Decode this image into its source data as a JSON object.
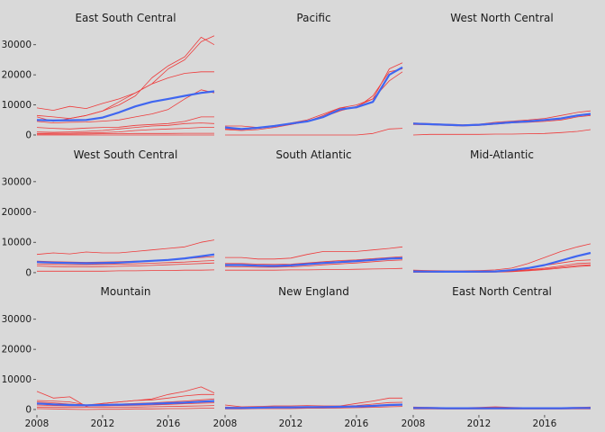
{
  "chart_data": {
    "type": "line",
    "layout": "3x3 facet grid",
    "x_ticks": [
      2008,
      2012,
      2016
    ],
    "xlim": [
      2008,
      2018.8
    ],
    "y_ticks": [
      0,
      10000,
      20000,
      30000
    ],
    "y_tick_labels": [
      "0",
      "10000",
      "20000",
      "30000"
    ],
    "ylim": [
      -1500,
      35000
    ],
    "grid": false,
    "legend": "none",
    "x": [
      2008,
      2009,
      2010,
      2011,
      2012,
      2013,
      2014,
      2015,
      2016,
      2017,
      2018,
      2018.8
    ],
    "colors": {
      "thin": "#ee3b3b",
      "mean": "#3f66f0",
      "background": "#d9d9d9"
    },
    "panels": [
      {
        "title": "East South Central",
        "mean": [
          5000,
          4800,
          4900,
          5000,
          5800,
          7500,
          9500,
          11000,
          12000,
          13000,
          14000,
          14500
        ],
        "lines": [
          [
            9000,
            8200,
            9500,
            8800,
            10500,
            12000,
            14000,
            17000,
            22000,
            25000,
            31000,
            33000
          ],
          [
            6500,
            6000,
            5500,
            6500,
            8000,
            10000,
            13000,
            19000,
            23000,
            26000,
            32500,
            30000
          ],
          [
            6000,
            4500,
            5500,
            6500,
            8000,
            11000,
            14000,
            17000,
            19000,
            20500,
            21000,
            21000
          ],
          [
            4500,
            4000,
            4200,
            4300,
            4600,
            5000,
            6000,
            7000,
            8500,
            12000,
            15000,
            14000
          ],
          [
            2500,
            2200,
            2000,
            2300,
            2500,
            2600,
            3200,
            3500,
            3800,
            4500,
            6000,
            6000
          ],
          [
            1000,
            900,
            1000,
            1200,
            1500,
            2000,
            2500,
            3000,
            3200,
            3800,
            4000,
            3800
          ],
          [
            500,
            600,
            600,
            700,
            800,
            1000,
            1500,
            1800,
            2000,
            2200,
            2500,
            2500
          ],
          [
            300,
            300,
            300,
            350,
            400,
            450,
            500,
            500,
            500,
            550,
            550,
            550
          ],
          [
            0,
            0,
            0,
            0,
            0,
            0,
            0,
            0,
            0,
            0,
            0,
            0
          ]
        ]
      },
      {
        "title": "Pacific",
        "mean": [
          2500,
          2000,
          2400,
          3000,
          3800,
          4500,
          6000,
          8500,
          9200,
          11000,
          20000,
          22500
        ],
        "lines": [
          [
            3000,
            3000,
            2500,
            3000,
            3500,
            4500,
            6500,
            9000,
            10000,
            12000,
            22000,
            24000
          ],
          [
            2000,
            1800,
            2200,
            2800,
            4000,
            5000,
            7000,
            9000,
            9000,
            13000,
            21000,
            22000
          ],
          [
            1800,
            1500,
            1800,
            2500,
            3500,
            4500,
            6000,
            8000,
            9500,
            12000,
            18000,
            21000
          ],
          [
            0,
            0,
            0,
            0,
            0,
            0,
            0,
            0,
            0,
            500,
            2000,
            2200
          ]
        ]
      },
      {
        "title": "West North Central",
        "mean": [
          3800,
          3600,
          3400,
          3200,
          3400,
          3800,
          4200,
          4500,
          5000,
          5500,
          6500,
          7000
        ],
        "lines": [
          [
            4000,
            3800,
            3600,
            3400,
            3600,
            4200,
            4600,
            5000,
            5500,
            6500,
            7500,
            8000
          ],
          [
            3500,
            3400,
            3200,
            3000,
            3200,
            3600,
            4000,
            4200,
            4500,
            5000,
            6000,
            6500
          ],
          [
            0,
            200,
            200,
            200,
            200,
            300,
            300,
            400,
            500,
            800,
            1200,
            1800
          ]
        ]
      },
      {
        "title": "West South Central",
        "mean": [
          3500,
          3300,
          3200,
          3100,
          3200,
          3300,
          3600,
          3900,
          4200,
          4700,
          5400,
          6000
        ],
        "lines": [
          [
            6000,
            6500,
            6200,
            6800,
            6500,
            6500,
            7000,
            7500,
            8000,
            8500,
            10000,
            10800
          ],
          [
            3800,
            3600,
            3500,
            3400,
            3500,
            3600,
            3800,
            4000,
            4300,
            4600,
            5000,
            5300
          ],
          [
            2800,
            2700,
            2600,
            2600,
            2700,
            2800,
            2900,
            3100,
            3300,
            3500,
            3800,
            4000
          ],
          [
            2200,
            2000,
            1900,
            1900,
            2000,
            2100,
            2200,
            2400,
            2600,
            2800,
            3000,
            3200
          ],
          [
            500,
            500,
            500,
            500,
            500,
            600,
            600,
            700,
            700,
            800,
            800,
            900
          ]
        ]
      },
      {
        "title": "South Atlantic",
        "mean": [
          2500,
          2500,
          2300,
          2200,
          2400,
          2800,
          3200,
          3500,
          3800,
          4200,
          4600,
          4800
        ],
        "lines": [
          [
            5000,
            5000,
            4500,
            4500,
            4800,
            6000,
            7000,
            7000,
            7000,
            7500,
            8000,
            8500
          ],
          [
            3000,
            3000,
            2800,
            2700,
            2800,
            3200,
            3600,
            4000,
            4200,
            4600,
            5000,
            5300
          ],
          [
            2000,
            1900,
            1800,
            1800,
            1900,
            2200,
            2600,
            2900,
            3200,
            3600,
            4000,
            4200
          ],
          [
            800,
            800,
            800,
            800,
            900,
            900,
            1000,
            1000,
            1100,
            1200,
            1300,
            1400
          ]
        ]
      },
      {
        "title": "Mid-Atlantic",
        "mean": [
          400,
          350,
          300,
          300,
          350,
          400,
          800,
          1500,
          2500,
          4000,
          5500,
          6500
        ],
        "lines": [
          [
            800,
            700,
            600,
            600,
            700,
            900,
            1500,
            3000,
            5000,
            7000,
            8500,
            9500
          ],
          [
            500,
            400,
            350,
            350,
            400,
            500,
            900,
            1600,
            2400,
            3200,
            4000,
            4200
          ],
          [
            300,
            250,
            200,
            200,
            250,
            300,
            500,
            1000,
            1500,
            2200,
            3000,
            3200
          ],
          [
            200,
            200,
            150,
            150,
            200,
            250,
            400,
            800,
            1200,
            1800,
            2400,
            2600
          ],
          [
            100,
            100,
            100,
            100,
            100,
            150,
            300,
            600,
            1000,
            1500,
            2000,
            2300
          ]
        ]
      },
      {
        "title": "Mountain",
        "mean": [
          2000,
          1700,
          1500,
          1400,
          1500,
          1600,
          1700,
          1900,
          2100,
          2300,
          2600,
          2800
        ],
        "lines": [
          [
            6000,
            3800,
            4200,
            1000,
            2000,
            2500,
            3000,
            3500,
            5000,
            6000,
            7500,
            5500
          ],
          [
            3000,
            2800,
            2500,
            1500,
            2000,
            2500,
            3000,
            3200,
            3800,
            4500,
            5000,
            5000
          ],
          [
            2500,
            2200,
            1800,
            1500,
            1600,
            1800,
            2000,
            2200,
            2500,
            2800,
            3200,
            3500
          ],
          [
            1500,
            1300,
            1200,
            1200,
            1200,
            1300,
            1400,
            1500,
            1700,
            1900,
            2100,
            2200
          ],
          [
            800,
            800,
            700,
            700,
            700,
            800,
            800,
            900,
            1000,
            1100,
            1200,
            1300
          ],
          [
            300,
            200,
            100,
            0,
            100,
            100,
            200,
            200,
            300,
            300,
            400,
            400
          ]
        ]
      },
      {
        "title": "New England",
        "mean": [
          500,
          500,
          600,
          700,
          700,
          800,
          800,
          900,
          1000,
          1200,
          1500,
          1600
        ],
        "lines": [
          [
            1500,
            900,
            1000,
            1200,
            1200,
            1300,
            1200,
            1200,
            2000,
            2800,
            3800,
            3800
          ],
          [
            800,
            700,
            700,
            800,
            900,
            900,
            1000,
            1100,
            1300,
            1800,
            2300,
            2400
          ],
          [
            400,
            400,
            500,
            600,
            600,
            700,
            700,
            800,
            900,
            1100,
            1400,
            1500
          ],
          [
            200,
            200,
            300,
            300,
            300,
            400,
            400,
            500,
            600,
            700,
            900,
            1000
          ]
        ]
      },
      {
        "title": "East North Central",
        "mean": [
          500,
          500,
          400,
          400,
          400,
          400,
          400,
          400,
          400,
          400,
          500,
          500
        ],
        "lines": [
          [
            800,
            700,
            600,
            600,
            700,
            900,
            700,
            600,
            600,
            600,
            700,
            800
          ],
          [
            400,
            400,
            300,
            300,
            300,
            400,
            300,
            300,
            300,
            300,
            400,
            400
          ],
          [
            200,
            200,
            150,
            150,
            150,
            200,
            150,
            150,
            150,
            150,
            200,
            200
          ]
        ]
      }
    ]
  }
}
